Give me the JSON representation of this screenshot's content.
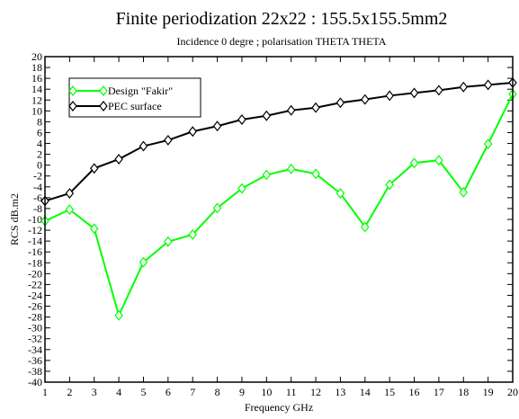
{
  "chart_data": {
    "type": "line",
    "title": "Finite periodization 22x22 : 155.5x155.5mm2",
    "subtitle": "Incidence 0 degre ; polarisation THETA THETA",
    "xlabel": "Frequency GHz",
    "ylabel": "RCS dB.m2",
    "xlim": [
      1,
      20
    ],
    "ylim": [
      -40,
      20
    ],
    "x_ticks": [
      1,
      2,
      3,
      4,
      5,
      6,
      7,
      8,
      9,
      10,
      11,
      12,
      13,
      14,
      15,
      16,
      17,
      18,
      19,
      20
    ],
    "y_ticks": [
      20,
      18,
      16,
      14,
      12,
      10,
      8,
      6,
      4,
      2,
      0,
      -2,
      -4,
      -6,
      -8,
      -10,
      -12,
      -14,
      -16,
      -18,
      -20,
      -22,
      -24,
      -26,
      -28,
      -30,
      -32,
      -34,
      -36,
      -38,
      -40
    ],
    "legend_position": "top-left",
    "grid": false,
    "x": [
      1,
      2,
      3,
      4,
      5,
      6,
      7,
      8,
      9,
      10,
      11,
      12,
      13,
      14,
      15,
      16,
      17,
      18,
      19,
      20
    ],
    "series": [
      {
        "name": "Design  \"Fakir\"",
        "color": "#00ff00",
        "marker": "diamond",
        "values": [
          -10.3,
          -8.2,
          -11.7,
          -27.7,
          -17.9,
          -14.1,
          -12.8,
          -7.9,
          -4.3,
          -1.8,
          -0.7,
          -1.6,
          -5.2,
          -11.4,
          -3.6,
          0.4,
          0.9,
          -5.0,
          3.9,
          13.1
        ]
      },
      {
        "name": "PEC surface",
        "color": "#000000",
        "marker": "diamond",
        "values": [
          -6.6,
          -5.2,
          -0.6,
          1.1,
          3.5,
          4.6,
          6.2,
          7.2,
          8.4,
          9.1,
          10.1,
          10.6,
          11.5,
          12.1,
          12.8,
          13.3,
          13.8,
          14.4,
          14.8,
          15.2
        ]
      }
    ]
  }
}
